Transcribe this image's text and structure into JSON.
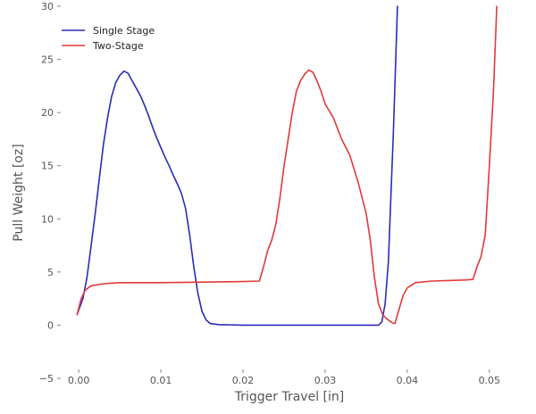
{
  "chart_data": {
    "type": "line",
    "title": "",
    "xlabel": "Trigger Travel [in]",
    "ylabel": "Pull Weight [oz]",
    "xlim": [
      -0.0035,
      0.0535
    ],
    "ylim": [
      -5,
      30
    ],
    "x_ticks": [
      0.0,
      0.01,
      0.02,
      0.03,
      0.04,
      0.05
    ],
    "x_tick_labels": [
      "0.00",
      "0.01",
      "0.02",
      "0.03",
      "0.04",
      "0.05"
    ],
    "y_ticks": [
      -5,
      0,
      5,
      10,
      15,
      20,
      25,
      30
    ],
    "y_tick_labels": [
      "−5",
      "0",
      "5",
      "10",
      "15",
      "20",
      "25",
      "30"
    ],
    "grid": false,
    "legend_position": "top-left",
    "series": [
      {
        "name": "Single Stage",
        "color": "#2b2bb8",
        "points": [
          [
            -0.0002,
            1.0
          ],
          [
            0.0005,
            2.5
          ],
          [
            0.001,
            4.5
          ],
          [
            0.0015,
            7.5
          ],
          [
            0.002,
            10.5
          ],
          [
            0.0025,
            13.8
          ],
          [
            0.003,
            17.0
          ],
          [
            0.0035,
            19.5
          ],
          [
            0.004,
            21.5
          ],
          [
            0.0045,
            22.8
          ],
          [
            0.005,
            23.5
          ],
          [
            0.0055,
            23.9
          ],
          [
            0.006,
            23.7
          ],
          [
            0.0065,
            23.0
          ],
          [
            0.007,
            22.3
          ],
          [
            0.0075,
            21.6
          ],
          [
            0.008,
            20.7
          ],
          [
            0.0085,
            19.7
          ],
          [
            0.009,
            18.6
          ],
          [
            0.0095,
            17.6
          ],
          [
            0.01,
            16.7
          ],
          [
            0.0105,
            15.8
          ],
          [
            0.011,
            15.0
          ],
          [
            0.0115,
            14.1
          ],
          [
            0.012,
            13.3
          ],
          [
            0.0125,
            12.4
          ],
          [
            0.013,
            11.0
          ],
          [
            0.0135,
            8.5
          ],
          [
            0.014,
            5.5
          ],
          [
            0.0145,
            3.0
          ],
          [
            0.015,
            1.3
          ],
          [
            0.0155,
            0.5
          ],
          [
            0.016,
            0.15
          ],
          [
            0.017,
            0.05
          ],
          [
            0.02,
            0.0
          ],
          [
            0.025,
            0.0
          ],
          [
            0.03,
            0.0
          ],
          [
            0.034,
            0.0
          ],
          [
            0.0365,
            0.0
          ],
          [
            0.0369,
            0.3
          ],
          [
            0.0373,
            2.0
          ],
          [
            0.0377,
            6.0
          ],
          [
            0.038,
            12.0
          ],
          [
            0.0383,
            18.0
          ],
          [
            0.0386,
            25.0
          ],
          [
            0.0388,
            30.0
          ]
        ]
      },
      {
        "name": "Two-Stage",
        "color": "#e03a3a",
        "points": [
          [
            -0.0002,
            1.0
          ],
          [
            0.0003,
            2.5
          ],
          [
            0.0008,
            3.3
          ],
          [
            0.0015,
            3.7
          ],
          [
            0.003,
            3.9
          ],
          [
            0.005,
            4.0
          ],
          [
            0.01,
            4.0
          ],
          [
            0.015,
            4.05
          ],
          [
            0.02,
            4.1
          ],
          [
            0.022,
            4.15
          ],
          [
            0.0225,
            5.5
          ],
          [
            0.023,
            7.0
          ],
          [
            0.0235,
            8.0
          ],
          [
            0.024,
            9.5
          ],
          [
            0.0245,
            12.0
          ],
          [
            0.025,
            15.0
          ],
          [
            0.0255,
            17.5
          ],
          [
            0.026,
            20.0
          ],
          [
            0.0265,
            22.0
          ],
          [
            0.027,
            23.0
          ],
          [
            0.0275,
            23.6
          ],
          [
            0.028,
            24.0
          ],
          [
            0.0285,
            23.8
          ],
          [
            0.029,
            23.0
          ],
          [
            0.0295,
            22.0
          ],
          [
            0.03,
            20.8
          ],
          [
            0.031,
            19.5
          ],
          [
            0.032,
            17.5
          ],
          [
            0.033,
            16.0
          ],
          [
            0.034,
            13.5
          ],
          [
            0.035,
            10.5
          ],
          [
            0.0355,
            8.0
          ],
          [
            0.036,
            4.5
          ],
          [
            0.0365,
            2.0
          ],
          [
            0.037,
            1.0
          ],
          [
            0.0375,
            0.6
          ],
          [
            0.0382,
            0.2
          ],
          [
            0.0385,
            0.15
          ],
          [
            0.039,
            1.5
          ],
          [
            0.0395,
            2.8
          ],
          [
            0.04,
            3.5
          ],
          [
            0.041,
            4.0
          ],
          [
            0.043,
            4.15
          ],
          [
            0.045,
            4.2
          ],
          [
            0.047,
            4.25
          ],
          [
            0.048,
            4.3
          ],
          [
            0.0485,
            5.5
          ],
          [
            0.049,
            6.5
          ],
          [
            0.0495,
            8.5
          ],
          [
            0.05,
            15.0
          ],
          [
            0.0505,
            22.0
          ],
          [
            0.0509,
            30.0
          ]
        ]
      }
    ]
  }
}
